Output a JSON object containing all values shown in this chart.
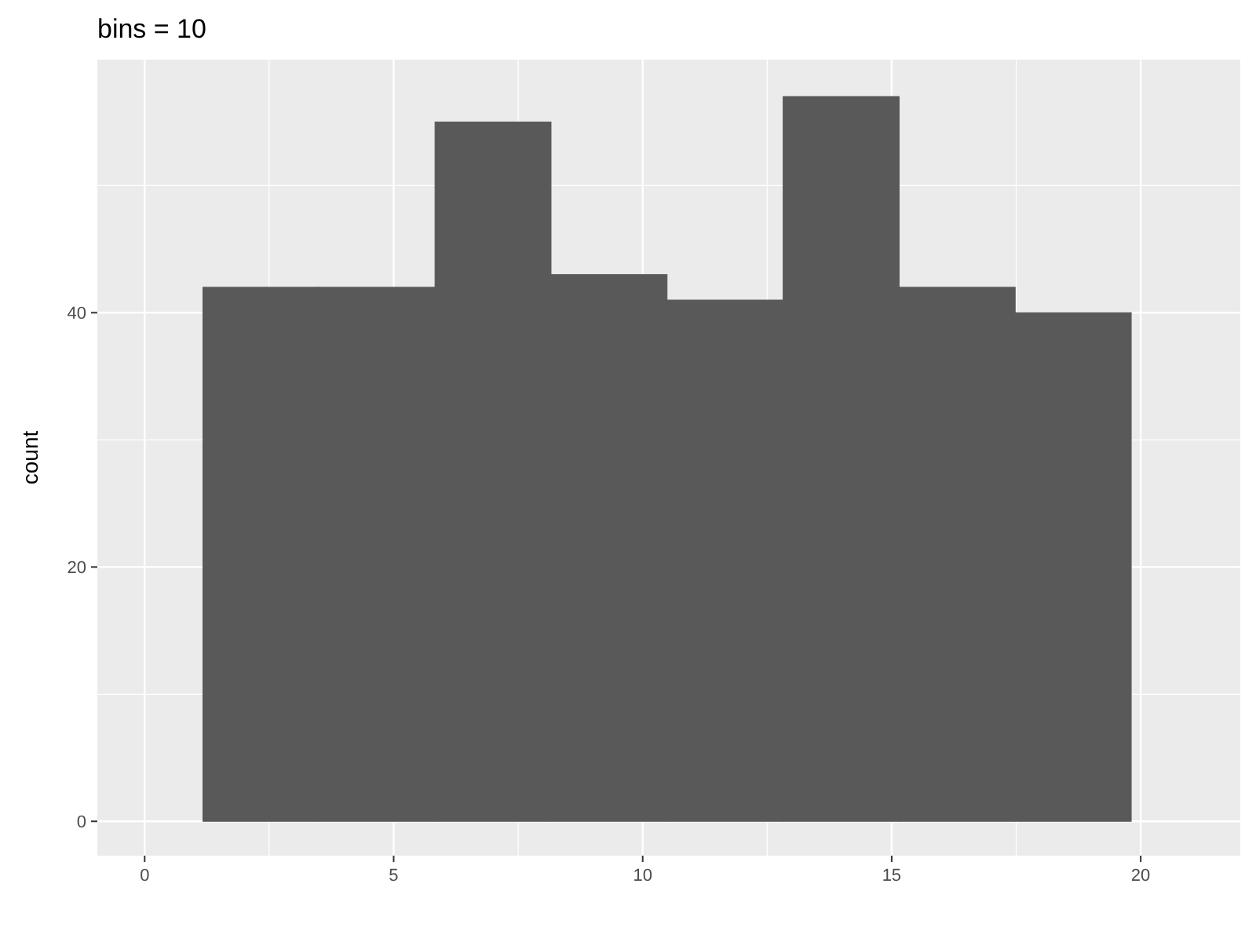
{
  "chart_data": {
    "type": "histogram",
    "title": "bins = 10",
    "ylabel": "count",
    "bins": [
      1.17,
      3.5,
      5.83,
      8.16,
      10.49,
      12.82,
      15.15,
      17.48,
      19.81
    ],
    "values": [
      42,
      42,
      55,
      43,
      41,
      57,
      42,
      40
    ],
    "color": "#595959",
    "xlim": [
      -0.95,
      22
    ],
    "ylim": [
      -2.7,
      59.9
    ],
    "xticks": [
      0,
      5,
      10,
      15,
      20
    ],
    "yticks": [
      0,
      20,
      40
    ],
    "grid": true
  }
}
